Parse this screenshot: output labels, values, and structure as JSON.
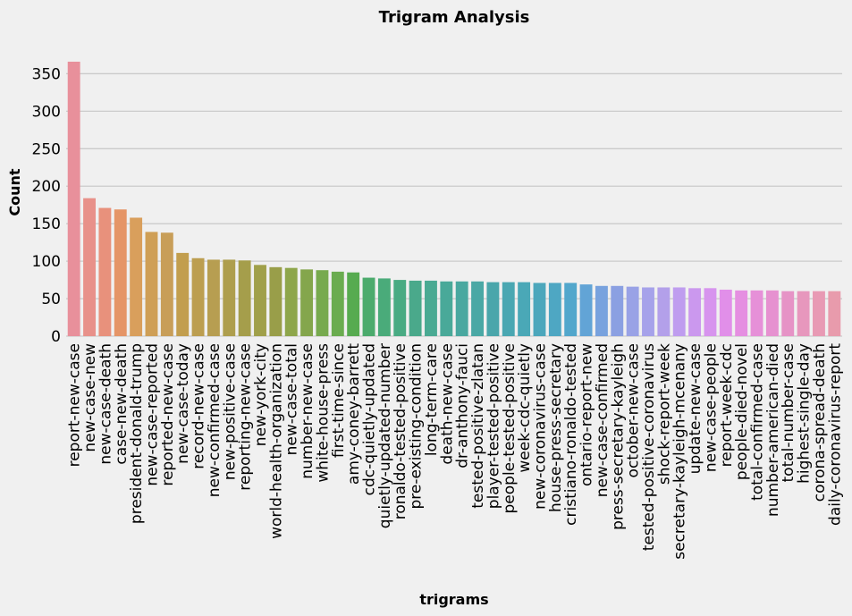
{
  "chart_data": {
    "type": "bar",
    "title": "Trigram Analysis",
    "xlabel": "trigrams",
    "ylabel": "Count",
    "ylim": [
      0,
      370
    ],
    "yticks": [
      0,
      50,
      100,
      150,
      200,
      250,
      300,
      350
    ],
    "grid": "horizontal",
    "categories": [
      "report-new-case",
      "new-case-new",
      "new-case-death",
      "case-new-death",
      "president-donald-trump",
      "new-case-reported",
      "reported-new-case",
      "new-case-today",
      "record-new-case",
      "new-confirmed-case",
      "new-positive-case",
      "reporting-new-case",
      "new-york-city",
      "world-health-organization",
      "new-case-total",
      "number-new-case",
      "white-house-press",
      "first-time-since",
      "amy-coney-barrett",
      "cdc-quietly-updated",
      "quietly-updated-number",
      "ronaldo-tested-positive",
      "pre-existing-condition",
      "long-term-care",
      "death-new-case",
      "dr-anthony-fauci",
      "tested-positive-zlatan",
      "player-tested-positive",
      "people-tested-positive",
      "week-cdc-quietly",
      "new-coronavirus-case",
      "house-press-secretary",
      "cristiano-ronaldo-tested",
      "ontario-report-new",
      "new-case-confirmed",
      "press-secretary-kayleigh",
      "october-new-case",
      "tested-positive-coronavirus",
      "shock-report-week",
      "secretary-kayleigh-mcenany",
      "update-new-case",
      "new-case-people",
      "report-week-cdc",
      "people-died-novel",
      "total-confirmed-case",
      "number-american-died",
      "total-number-case",
      "highest-single-day",
      "corona-spread-death",
      "daily-coronavirus-report"
    ],
    "values": [
      366,
      184,
      171,
      169,
      158,
      139,
      138,
      111,
      104,
      102,
      102,
      101,
      95,
      92,
      91,
      89,
      88,
      86,
      85,
      78,
      77,
      75,
      74,
      74,
      73,
      73,
      73,
      72,
      72,
      72,
      71,
      71,
      71,
      69,
      67,
      67,
      66,
      65,
      65,
      65,
      64,
      64,
      62,
      61,
      61,
      61,
      60,
      60,
      60,
      60
    ],
    "colors": [
      "#e8909b",
      "#e8918a",
      "#e8917c",
      "#e59567",
      "#d99f5c",
      "#cf9f56",
      "#c89e58",
      "#c29e4e",
      "#bc9e50",
      "#b79e51",
      "#ae9e4d",
      "#a59e4b",
      "#a0a04a",
      "#999e49",
      "#8ea64b",
      "#84a64c",
      "#77aa4e",
      "#6aac4f",
      "#57ab50",
      "#4cab6d",
      "#4aab7a",
      "#49ab83",
      "#4aa98b",
      "#4aaa93",
      "#49a999",
      "#49a8a0",
      "#4aa8a5",
      "#4aa6ab",
      "#4aa7b2",
      "#4aa8b7",
      "#4ca7bc",
      "#4ea7c3",
      "#52a7cc",
      "#62a4d6",
      "#78a2de",
      "#8ba0e2",
      "#99a2e6",
      "#a6a2ea",
      "#b3a0ea",
      "#bf9def",
      "#cb98ee",
      "#d794ee",
      "#e18fe9",
      "#e58fe1",
      "#e690d8",
      "#e691d0",
      "#e693c6",
      "#e797bd",
      "#e89ab4",
      "#e89bac"
    ]
  }
}
